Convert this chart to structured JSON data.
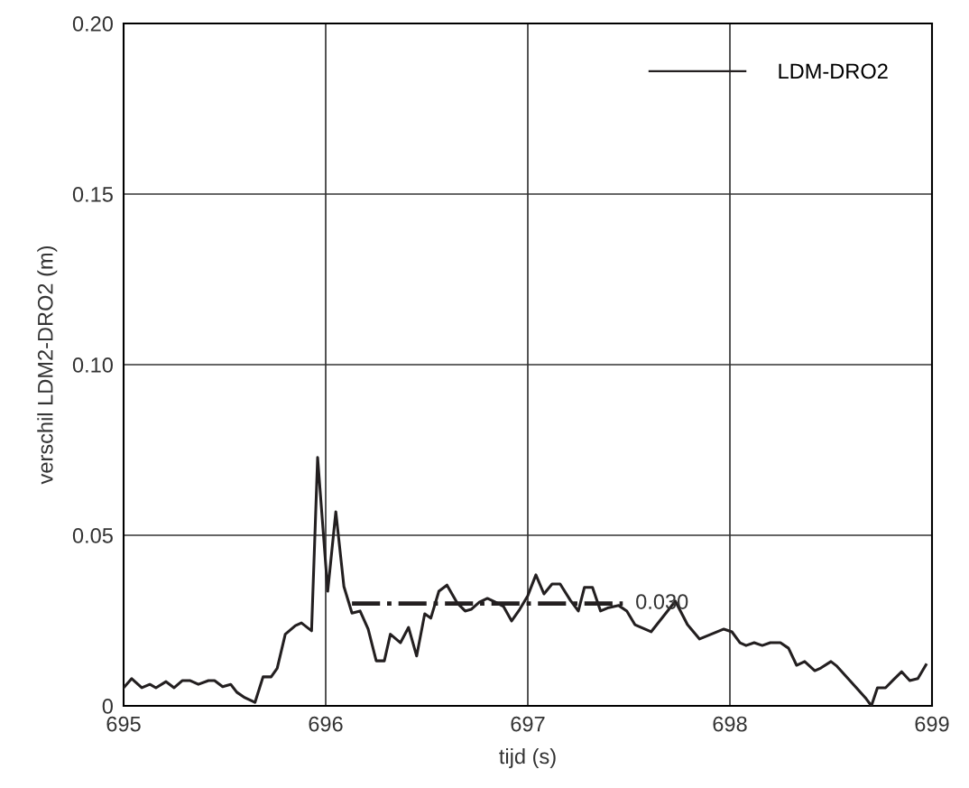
{
  "chart_data": {
    "type": "line",
    "xlabel": "tijd (s)",
    "ylabel": "verschil LDM2-DRO2 (m)",
    "xlim": [
      695,
      699
    ],
    "xticks": [
      695,
      696,
      697,
      698,
      699
    ],
    "ylim": [
      0,
      0.2
    ],
    "yticks": [
      0,
      {
        "value": 0.05,
        "label": "0.05"
      },
      {
        "value": 0.1,
        "label": "0.10"
      },
      {
        "value": 0.15,
        "label": "0.15"
      },
      {
        "value": 0.2,
        "label": "0.20"
      }
    ],
    "grid": true,
    "legend": "top right",
    "marker": "none",
    "series": [
      {
        "name": "LDM-DRO2",
        "color": "#231f20",
        "line_style": "solid",
        "x": [
          695.0,
          695.04,
          695.09,
          695.13,
          695.16,
          695.21,
          695.25,
          695.29,
          695.33,
          695.37,
          695.42,
          695.45,
          695.49,
          695.53,
          695.56,
          695.6,
          695.65,
          695.69,
          695.73,
          695.76,
          695.8,
          695.85,
          695.88,
          695.93,
          695.96,
          696.01,
          696.05,
          696.09,
          696.13,
          696.17,
          696.21,
          696.25,
          696.29,
          696.32,
          696.37,
          696.41,
          696.45,
          696.49,
          696.52,
          696.56,
          696.6,
          696.65,
          696.69,
          696.72,
          696.76,
          696.8,
          696.84,
          696.88,
          696.92,
          696.96,
          697.0,
          697.04,
          697.08,
          697.12,
          697.16,
          697.21,
          697.25,
          697.28,
          697.32,
          697.36,
          697.4,
          697.45,
          697.49,
          697.53,
          697.61,
          697.67,
          697.73,
          697.79,
          697.85,
          697.97,
          698.01,
          698.05,
          698.08,
          698.12,
          698.16,
          698.2,
          698.25,
          698.29,
          698.33,
          698.37,
          698.42,
          698.45,
          698.5,
          698.53,
          698.67,
          698.7,
          698.73,
          698.77,
          698.81,
          698.85,
          698.89,
          698.93,
          698.97
        ],
        "values": [
          0.0053,
          0.008,
          0.0053,
          0.0063,
          0.0053,
          0.0071,
          0.0053,
          0.0074,
          0.0074,
          0.0063,
          0.0074,
          0.0074,
          0.0056,
          0.0063,
          0.004,
          0.0024,
          0.001,
          0.0085,
          0.0085,
          0.011,
          0.021,
          0.0235,
          0.0243,
          0.022,
          0.0728,
          0.0336,
          0.0569,
          0.035,
          0.0272,
          0.0278,
          0.0225,
          0.0132,
          0.0132,
          0.021,
          0.0185,
          0.023,
          0.0146,
          0.027,
          0.0257,
          0.0336,
          0.0354,
          0.0302,
          0.0278,
          0.0283,
          0.0304,
          0.0315,
          0.0304,
          0.0291,
          0.0249,
          0.0283,
          0.0323,
          0.0384,
          0.0328,
          0.0357,
          0.0357,
          0.031,
          0.0278,
          0.0347,
          0.0347,
          0.0278,
          0.0288,
          0.0294,
          0.0278,
          0.0238,
          0.0217,
          0.0262,
          0.0307,
          0.0238,
          0.0196,
          0.0225,
          0.0217,
          0.0185,
          0.0177,
          0.0185,
          0.0177,
          0.0185,
          0.0185,
          0.0169,
          0.0119,
          0.013,
          0.0103,
          0.0111,
          0.013,
          0.0116,
          0.0024,
          0,
          0.0053,
          0.0053,
          0.0077,
          0.01,
          0.0074,
          0.008,
          0.012
        ]
      },
      {
        "color": "#231f20",
        "line_style": "dashdot",
        "x": [
          696.13,
          697.47
        ],
        "values": [
          0.03,
          0.03
        ]
      }
    ],
    "annotations": [
      {
        "text": "0.030",
        "x": 697.47,
        "y": 0.03
      }
    ]
  }
}
